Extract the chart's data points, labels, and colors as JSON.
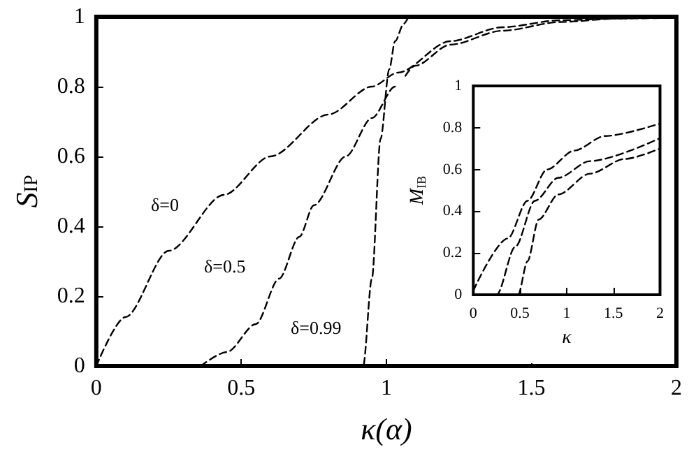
{
  "chart_data": [
    {
      "type": "line",
      "xlabel": "κ(α)",
      "ylabel": "S$_{IP}$",
      "xlim": [
        0,
        2
      ],
      "ylim": [
        0,
        1
      ],
      "xticks": [
        0,
        0.5,
        1,
        1.5,
        2
      ],
      "yticks": [
        0,
        0.2,
        0.4,
        0.6,
        0.8,
        1
      ],
      "grid": false,
      "marker": "none",
      "line_style": "dashed",
      "series": [
        {
          "color": "#000000",
          "x": [
            0,
            0.1,
            0.25,
            0.44,
            0.6,
            0.8,
            0.95,
            1.04,
            1.22,
            1.4,
            1.6,
            1.8,
            2
          ],
          "values": [
            0,
            0.14,
            0.33,
            0.49,
            0.6,
            0.72,
            0.8,
            0.84,
            0.93,
            0.97,
            0.99,
            0.995,
            0.997
          ]
        },
        {
          "color": "#000000",
          "x": [
            0.36,
            0.45,
            0.55,
            0.63,
            0.7,
            0.75,
            0.86,
            0.95,
            1.03,
            1.1,
            1.22,
            1.4,
            1.6,
            1.8,
            2
          ],
          "values": [
            0,
            0.04,
            0.12,
            0.25,
            0.37,
            0.46,
            0.6,
            0.71,
            0.8,
            0.86,
            0.92,
            0.96,
            0.985,
            0.995,
            1
          ]
        },
        {
          "color": "#000000",
          "x": [
            0,
            0.92,
            0.95,
            0.98,
            1.01,
            1.03,
            1.06,
            1.08,
            1.5,
            2
          ],
          "values": [
            0,
            0,
            0.25,
            0.65,
            0.85,
            0.93,
            0.98,
            1,
            1,
            1
          ]
        }
      ],
      "annotations": [
        "δ=0",
        "δ=0.5",
        "δ=0.99"
      ]
    },
    {
      "type": "line",
      "xlabel": "κ",
      "ylabel": "M$_{IB}$",
      "xlim": [
        0,
        2
      ],
      "ylim": [
        0,
        1
      ],
      "xticks": [
        0,
        0.5,
        1,
        1.5,
        2
      ],
      "yticks": [
        0,
        0.2,
        0.4,
        0.6,
        0.8,
        1
      ],
      "grid": false,
      "marker": "none",
      "line_style": "dashed",
      "series": [
        {
          "color": "#000000",
          "x": [
            0,
            0.37,
            0.58,
            0.79,
            1.08,
            1.41,
            2
          ],
          "values": [
            0.02,
            0.27,
            0.45,
            0.6,
            0.69,
            0.76,
            0.82
          ]
        },
        {
          "color": "#000000",
          "x": [
            0,
            0.25,
            0.45,
            0.66,
            0.91,
            1.25,
            2
          ],
          "values": [
            0,
            0,
            0.23,
            0.45,
            0.56,
            0.64,
            0.75
          ]
        },
        {
          "color": "#000000",
          "x": [
            0,
            0.48,
            0.58,
            0.7,
            0.91,
            1.25,
            1.62,
            2
          ],
          "values": [
            0,
            0,
            0.16,
            0.36,
            0.48,
            0.58,
            0.65,
            0.7
          ]
        }
      ]
    }
  ]
}
